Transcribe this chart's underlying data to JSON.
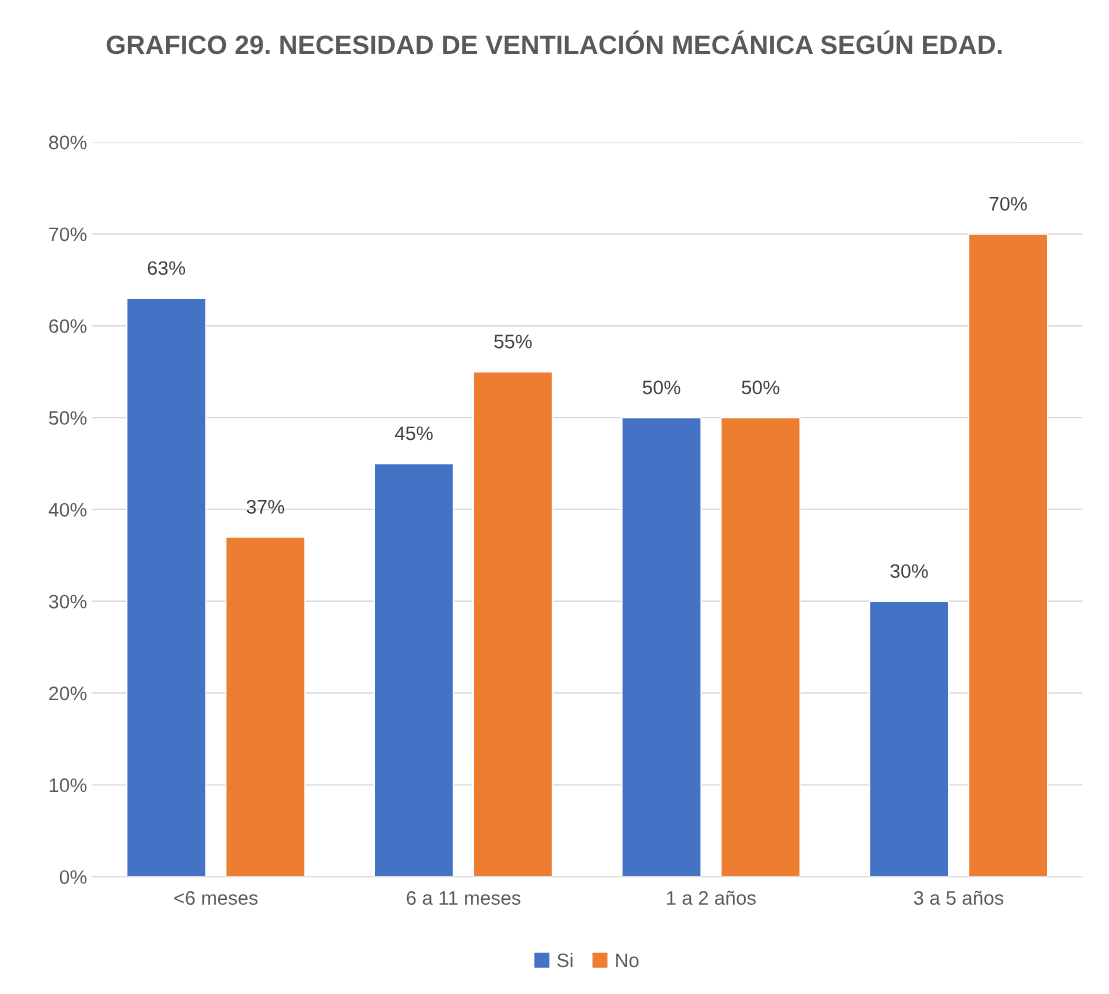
{
  "chart_data": {
    "type": "bar",
    "title": "GRAFICO 29. NECESIDAD DE VENTILACIÓN MECÁNICA SEGÚN EDAD.",
    "categories": [
      "<6 meses",
      "6 a 11 meses",
      "1 a 2 años",
      "3 a 5 años"
    ],
    "series": [
      {
        "name": "Si",
        "color": "#4472c4",
        "values": [
          63,
          45,
          50,
          30
        ],
        "value_labels": [
          "63%",
          "45%",
          "50%",
          "30%"
        ]
      },
      {
        "name": "No",
        "color": "#ed7d31",
        "values": [
          37,
          55,
          50,
          70
        ],
        "value_labels": [
          "37%",
          "55%",
          "50%",
          "70%"
        ]
      }
    ],
    "ylim": [
      0,
      80
    ],
    "yticks": [
      {
        "value": 0,
        "label": "0%"
      },
      {
        "value": 10,
        "label": "10%"
      },
      {
        "value": 20,
        "label": "20%"
      },
      {
        "value": 30,
        "label": "30%"
      },
      {
        "value": 40,
        "label": "40%"
      },
      {
        "value": 50,
        "label": "50%"
      },
      {
        "value": 60,
        "label": "60%"
      },
      {
        "value": 70,
        "label": "70%"
      },
      {
        "value": 80,
        "label": "80%"
      }
    ],
    "grid": "y",
    "legend": "bottom"
  }
}
